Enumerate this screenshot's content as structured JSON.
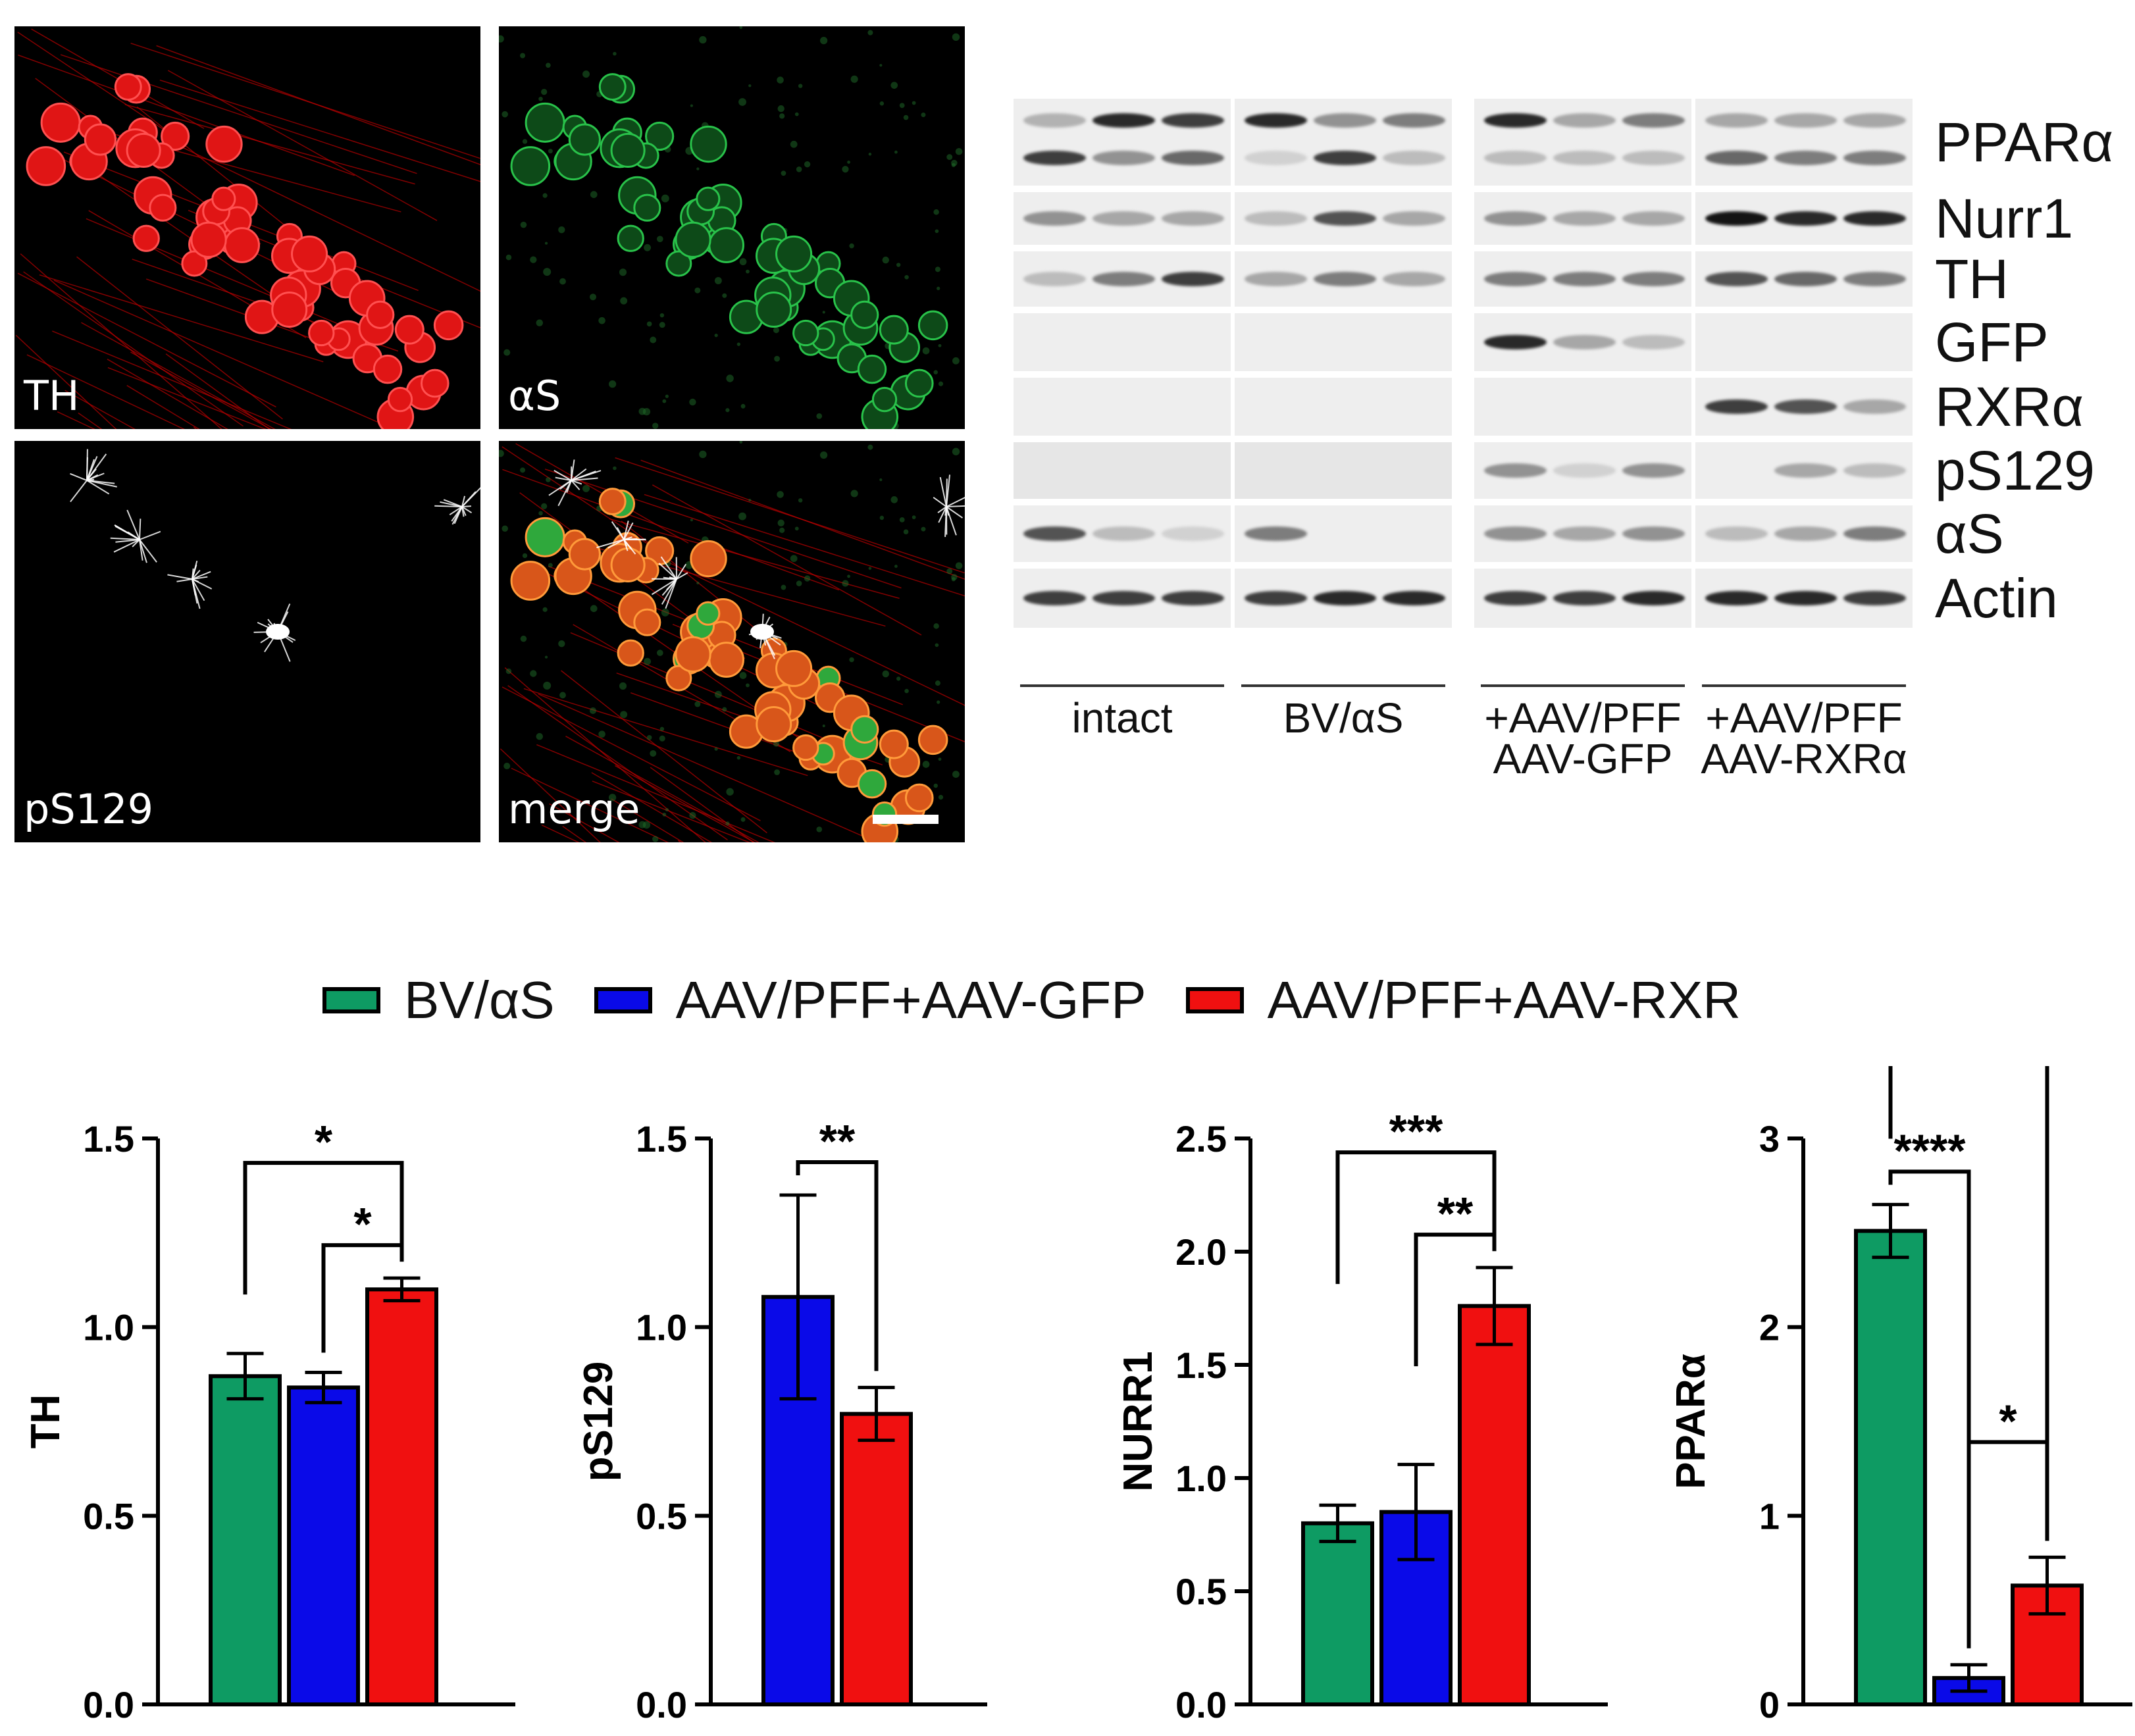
{
  "micrographs": [
    {
      "label": "TH",
      "color": "#ff1a1a"
    },
    {
      "label": "αS",
      "color": "#19a83a"
    },
    {
      "label": "pS129",
      "color": "#ffffff"
    },
    {
      "label": "merge",
      "color": "#ff7a1a"
    }
  ],
  "blot": {
    "proteins": [
      "PPARα",
      "Nurr1",
      "TH",
      "GFP",
      "RXRα",
      "pS129",
      "αS",
      "Actin"
    ],
    "groups": [
      {
        "line1": "intact",
        "line2": ""
      },
      {
        "line1": "BV/αS",
        "line2": ""
      },
      {
        "line1": "+AAV/PFF",
        "line2": "AAV-GFP"
      },
      {
        "line1": "+AAV/PFF",
        "line2": "AAV-RXRα"
      }
    ]
  },
  "legend": [
    {
      "label": "BV/αS",
      "color": "#0e9b63"
    },
    {
      "label": "AAV/PFF+AAV-GFP",
      "color": "#0a0ae8"
    },
    {
      "label": "AAV/PFF+AAV-RXR",
      "color": "#f01010"
    }
  ],
  "chart_data": [
    {
      "type": "bar",
      "ylabel": "TH",
      "ylim": [
        0,
        1.5
      ],
      "yticks": [
        "0.0",
        "0.5",
        "1.0",
        "1.5"
      ],
      "bars": [
        {
          "group": "BV/αS",
          "value": 0.87,
          "error": 0.06
        },
        {
          "group": "AAV/PFF+AAV-GFP",
          "value": 0.84,
          "error": 0.04
        },
        {
          "group": "AAV/PFF+AAV-RXR",
          "value": 1.1,
          "error": 0.03
        }
      ],
      "significance": [
        {
          "from": 0,
          "to": 2,
          "label": "*"
        },
        {
          "from": 1,
          "to": 2,
          "label": "*"
        }
      ]
    },
    {
      "type": "bar",
      "ylabel": "pS129",
      "ylim": [
        0,
        1.5
      ],
      "yticks": [
        "0.0",
        "0.5",
        "1.0",
        "1.5"
      ],
      "bars": [
        {
          "group": "AAV/PFF+AAV-GFP",
          "value": 1.08,
          "error": 0.27
        },
        {
          "group": "AAV/PFF+AAV-RXR",
          "value": 0.77,
          "error": 0.07
        }
      ],
      "significance": [
        {
          "from": 0,
          "to": 1,
          "label": "**"
        }
      ]
    },
    {
      "type": "bar",
      "ylabel": "NURR1",
      "ylim": [
        0,
        2.5
      ],
      "yticks": [
        "0.0",
        "0.5",
        "1.0",
        "1.5",
        "2.0",
        "2.5"
      ],
      "bars": [
        {
          "group": "BV/αS",
          "value": 0.8,
          "error": 0.08
        },
        {
          "group": "AAV/PFF+AAV-GFP",
          "value": 0.85,
          "error": 0.21
        },
        {
          "group": "AAV/PFF+AAV-RXR",
          "value": 1.76,
          "error": 0.17
        }
      ],
      "significance": [
        {
          "from": 0,
          "to": 2,
          "label": "***"
        },
        {
          "from": 1,
          "to": 2,
          "label": "**"
        }
      ]
    },
    {
      "type": "bar",
      "ylabel": "PPARα",
      "ylim": [
        0,
        3
      ],
      "yticks": [
        "0",
        "1",
        "2",
        "3"
      ],
      "bars": [
        {
          "group": "BV/αS",
          "value": 2.51,
          "error": 0.14
        },
        {
          "group": "AAV/PFF+AAV-GFP",
          "value": 0.14,
          "error": 0.07
        },
        {
          "group": "AAV/PFF+AAV-RXR",
          "value": 0.63,
          "error": 0.15
        }
      ],
      "significance": [
        {
          "from": 0,
          "to": 2,
          "label": "****"
        },
        {
          "from": 0,
          "to": 1,
          "label": "****"
        },
        {
          "from": 1,
          "to": 2,
          "label": "*"
        }
      ]
    }
  ]
}
